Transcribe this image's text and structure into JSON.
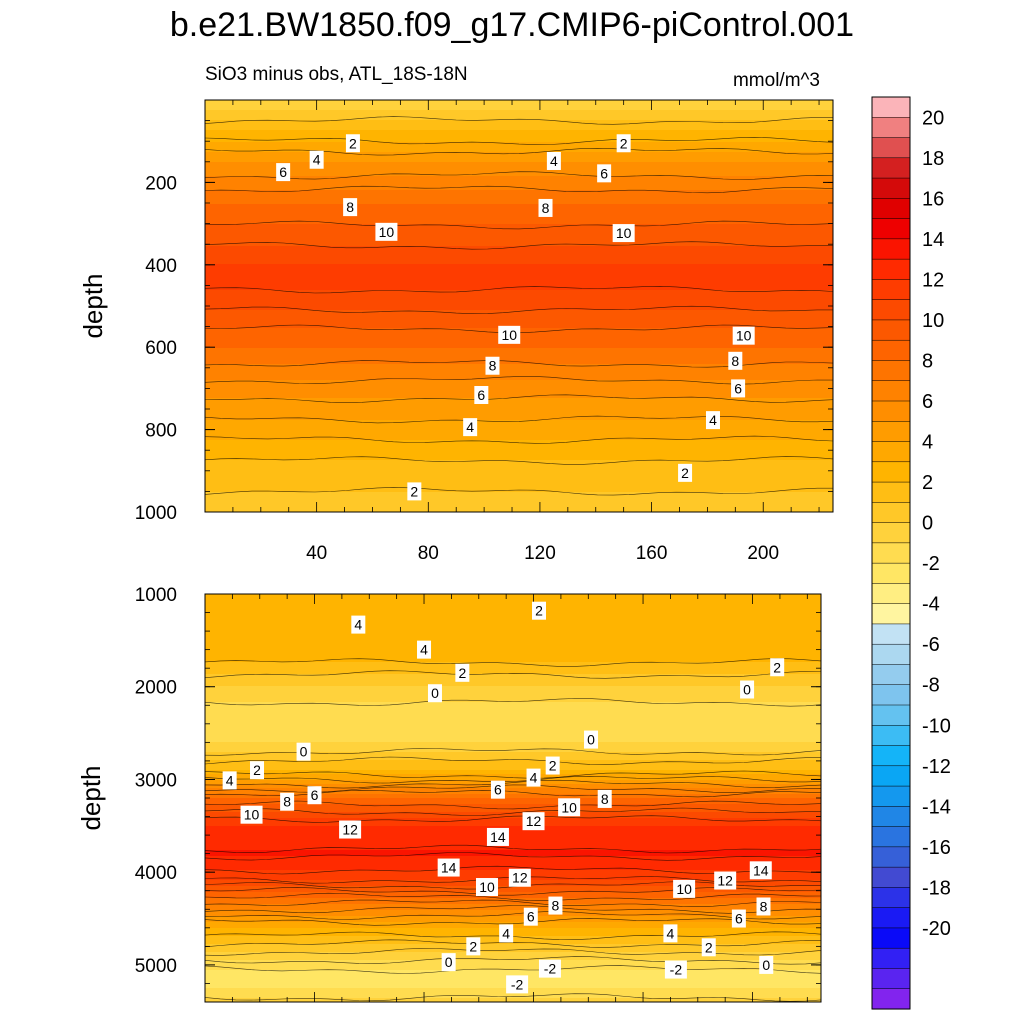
{
  "title": "b.e21.BW1850.f09_g17.CMIP6-piControl.001",
  "chart_data": [
    {
      "type": "heatmap",
      "panel": "upper",
      "subtitle": "SiO3 minus obs, ATL_18S-18N",
      "units": "mmol/m^3",
      "xlabel": "",
      "ylabel": "depth",
      "xlim": [
        0,
        225
      ],
      "ylim": [
        0,
        1000
      ],
      "y_inverted": true,
      "xticks": [
        40,
        80,
        120,
        160,
        200
      ],
      "yticks": [
        200,
        400,
        600,
        800,
        1000
      ],
      "profile": {
        "depth": [
          0,
          25,
          75,
          150,
          250,
          330,
          400,
          450,
          520,
          600,
          700,
          800,
          900,
          1000
        ],
        "value": [
          0.5,
          1.0,
          3.0,
          6.0,
          9.0,
          10.5,
          12.0,
          12.2,
          10.8,
          9.0,
          6.5,
          4.5,
          2.5,
          1.5
        ]
      },
      "contour_labels": [
        {
          "text": "2",
          "x": 53,
          "depth": 105
        },
        {
          "text": "2",
          "x": 150,
          "depth": 105
        },
        {
          "text": "4",
          "x": 40,
          "depth": 145
        },
        {
          "text": "4",
          "x": 125,
          "depth": 148
        },
        {
          "text": "6",
          "x": 28,
          "depth": 175
        },
        {
          "text": "6",
          "x": 143,
          "depth": 178
        },
        {
          "text": "8",
          "x": 52,
          "depth": 260
        },
        {
          "text": "8",
          "x": 122,
          "depth": 262
        },
        {
          "text": "10",
          "x": 65,
          "depth": 320
        },
        {
          "text": "10",
          "x": 150,
          "depth": 323
        },
        {
          "text": "10",
          "x": 109,
          "depth": 570
        },
        {
          "text": "10",
          "x": 193,
          "depth": 572
        },
        {
          "text": "8",
          "x": 103,
          "depth": 645
        },
        {
          "text": "8",
          "x": 190,
          "depth": 633
        },
        {
          "text": "6",
          "x": 99,
          "depth": 716
        },
        {
          "text": "6",
          "x": 191,
          "depth": 700
        },
        {
          "text": "4",
          "x": 95,
          "depth": 794
        },
        {
          "text": "4",
          "x": 182,
          "depth": 777
        },
        {
          "text": "2",
          "x": 75,
          "depth": 950
        },
        {
          "text": "2",
          "x": 172,
          "depth": 905
        }
      ]
    },
    {
      "type": "heatmap",
      "panel": "lower",
      "xlabel": "",
      "ylabel": "depth",
      "xlim": [
        0,
        225
      ],
      "ylim": [
        1000,
        5400
      ],
      "y_inverted": true,
      "yticks": [
        1000,
        2000,
        3000,
        4000,
        5000
      ],
      "profile": {
        "depth": [
          1000,
          1300,
          1700,
          2000,
          2300,
          2600,
          2900,
          3200,
          3500,
          3800,
          4050,
          4300,
          4600,
          4900,
          5100,
          5250,
          5400
        ],
        "value": [
          3.0,
          3.3,
          3.3,
          1.0,
          -0.8,
          0.0,
          3.0,
          9.0,
          13.0,
          14.2,
          12.5,
          8.5,
          4.0,
          0.5,
          -1.5,
          -1.0,
          0.5
        ]
      },
      "contour_labels": [
        {
          "text": "2",
          "x": 122,
          "depth": 1180
        },
        {
          "text": "4",
          "x": 56,
          "depth": 1330
        },
        {
          "text": "4",
          "x": 80,
          "depth": 1600
        },
        {
          "text": "2",
          "x": 94,
          "depth": 1850
        },
        {
          "text": "2",
          "x": 209,
          "depth": 1790
        },
        {
          "text": "0",
          "x": 84,
          "depth": 2070
        },
        {
          "text": "0",
          "x": 198,
          "depth": 2030
        },
        {
          "text": "0",
          "x": 141,
          "depth": 2570
        },
        {
          "text": "0",
          "x": 36,
          "depth": 2700
        },
        {
          "text": "2",
          "x": 19,
          "depth": 2900
        },
        {
          "text": "2",
          "x": 127,
          "depth": 2850
        },
        {
          "text": "4",
          "x": 9,
          "depth": 3010
        },
        {
          "text": "4",
          "x": 120,
          "depth": 2980
        },
        {
          "text": "6",
          "x": 40,
          "depth": 3170
        },
        {
          "text": "6",
          "x": 107,
          "depth": 3110
        },
        {
          "text": "8",
          "x": 30,
          "depth": 3240
        },
        {
          "text": "8",
          "x": 146,
          "depth": 3210
        },
        {
          "text": "10",
          "x": 17,
          "depth": 3380
        },
        {
          "text": "10",
          "x": 133,
          "depth": 3300
        },
        {
          "text": "12",
          "x": 53,
          "depth": 3540
        },
        {
          "text": "12",
          "x": 120,
          "depth": 3450
        },
        {
          "text": "14",
          "x": 107,
          "depth": 3620
        },
        {
          "text": "14",
          "x": 89,
          "depth": 3950
        },
        {
          "text": "14",
          "x": 203,
          "depth": 3980
        },
        {
          "text": "12",
          "x": 115,
          "depth": 4060
        },
        {
          "text": "12",
          "x": 190,
          "depth": 4090
        },
        {
          "text": "10",
          "x": 103,
          "depth": 4160
        },
        {
          "text": "10",
          "x": 175,
          "depth": 4180
        },
        {
          "text": "8",
          "x": 128,
          "depth": 4360
        },
        {
          "text": "8",
          "x": 204,
          "depth": 4370
        },
        {
          "text": "6",
          "x": 119,
          "depth": 4480
        },
        {
          "text": "6",
          "x": 195,
          "depth": 4500
        },
        {
          "text": "4",
          "x": 110,
          "depth": 4660
        },
        {
          "text": "4",
          "x": 170,
          "depth": 4660
        },
        {
          "text": "2",
          "x": 98,
          "depth": 4800
        },
        {
          "text": "2",
          "x": 184,
          "depth": 4810
        },
        {
          "text": "0",
          "x": 89,
          "depth": 4970
        },
        {
          "text": "0",
          "x": 205,
          "depth": 5000
        },
        {
          "text": "-2",
          "x": 126,
          "depth": 5040
        },
        {
          "text": "-2",
          "x": 172,
          "depth": 5050
        },
        {
          "text": "-2",
          "x": 114,
          "depth": 5210
        }
      ]
    }
  ],
  "colorbar": {
    "labels": [
      "20",
      "18",
      "16",
      "14",
      "12",
      "10",
      "8",
      "6",
      "4",
      "2",
      "0",
      "-2",
      "-4",
      "-6",
      "-8",
      "-10",
      "-12",
      "-14",
      "-16",
      "-18",
      "-20"
    ],
    "levels": [
      22,
      21,
      20,
      19,
      18,
      17,
      16,
      15,
      14,
      13,
      12,
      11,
      10,
      9,
      8,
      7,
      6,
      5,
      4,
      3,
      2,
      1,
      0,
      -1,
      -2,
      -3,
      -4,
      -5,
      -6,
      -7,
      -8,
      -9,
      -10,
      -11,
      -12,
      -13,
      -14,
      -15,
      -16,
      -17,
      -18,
      -19,
      -20,
      -21,
      -22
    ],
    "colors": [
      "#fbb4b9",
      "#f08080",
      "#e05050",
      "#d42020",
      "#d40a0a",
      "#e00000",
      "#ee0000",
      "#fa1400",
      "#ff2a00",
      "#fe3c00",
      "#fc4a00",
      "#fc5800",
      "#fe6400",
      "#fe7400",
      "#ff8200",
      "#ff8e00",
      "#ff9c00",
      "#ffa800",
      "#ffb400",
      "#ffbe14",
      "#ffc828",
      "#ffd23c",
      "#ffdc50",
      "#ffe664",
      "#ffee82",
      "#fff5a0",
      "#c2e2f4",
      "#acd8f0",
      "#94ccee",
      "#7ec4ee",
      "#64c2f0",
      "#3cbcf4",
      "#14b4f8",
      "#0aa6f4",
      "#1498ee",
      "#2086e6",
      "#2a74e0",
      "#3660d8",
      "#424ad2",
      "#2c32e8",
      "#1a1af4",
      "#0a0af8",
      "#3220f4",
      "#5a24f0",
      "#8224ee"
    ]
  }
}
